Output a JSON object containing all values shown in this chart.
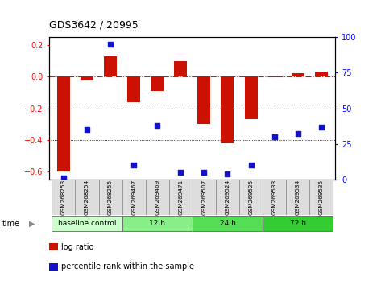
{
  "title": "GDS3642 / 20995",
  "samples": [
    "GSM268253",
    "GSM268254",
    "GSM268255",
    "GSM269467",
    "GSM269469",
    "GSM269471",
    "GSM269507",
    "GSM269524",
    "GSM269525",
    "GSM269533",
    "GSM269534",
    "GSM269535"
  ],
  "log_ratio": [
    -0.6,
    -0.02,
    0.13,
    -0.16,
    -0.09,
    0.1,
    -0.3,
    -0.42,
    -0.27,
    -0.005,
    0.02,
    0.03
  ],
  "percentile_rank": [
    1,
    35,
    95,
    10,
    38,
    5,
    5,
    4,
    10,
    30,
    32,
    37
  ],
  "groups": [
    {
      "label": "baseline control",
      "start": 0,
      "end": 3,
      "color": "#ccffcc"
    },
    {
      "label": "12 h",
      "start": 3,
      "end": 6,
      "color": "#88ee88"
    },
    {
      "label": "24 h",
      "start": 6,
      "end": 9,
      "color": "#55dd55"
    },
    {
      "label": "72 h",
      "start": 9,
      "end": 12,
      "color": "#33bb33"
    }
  ],
  "bar_color": "#cc1100",
  "dot_color": "#1111cc",
  "ylim_left": [
    -0.65,
    0.25
  ],
  "ylim_right": [
    0,
    100
  ],
  "yticks_left": [
    -0.6,
    -0.4,
    -0.2,
    0.0,
    0.2
  ],
  "yticks_right": [
    0,
    25,
    50,
    75,
    100
  ],
  "hline_y": 0.0,
  "dotline_y": [
    -0.2,
    -0.4
  ],
  "background_color": "#ffffff",
  "plot_bg": "#ffffff",
  "time_label": "time",
  "sample_bg": "#dddddd"
}
